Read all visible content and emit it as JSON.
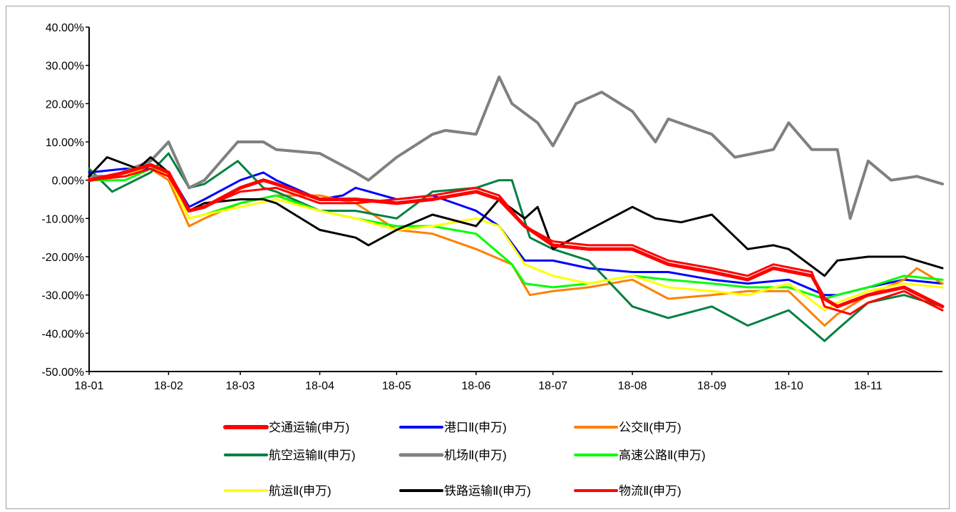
{
  "chart_data": {
    "type": "line",
    "title": "",
    "xlabel": "",
    "ylabel": "",
    "x_ticks": [
      "18-01",
      "18-02",
      "18-03",
      "18-04",
      "18-05",
      "18-06",
      "18-07",
      "18-08",
      "18-09",
      "18-10",
      "18-11"
    ],
    "y_ticks": [
      "40.00%",
      "30.00%",
      "20.00%",
      "10.00%",
      "0.00%",
      "-10.00%",
      "-20.00%",
      "-30.00%",
      "-40.00%",
      "-50.00%"
    ],
    "ylim": [
      -50,
      40
    ],
    "xlim": [
      "2018-01-01",
      "2018-11-30"
    ],
    "grid": false,
    "legend_position": "bottom",
    "series": [
      {
        "name": "交通运输(申万)",
        "color": "#ff0000",
        "width": 5,
        "x": [
          "2018-01-01",
          "2018-01-15",
          "2018-01-25",
          "2018-02-01",
          "2018-02-09",
          "2018-02-15",
          "2018-03-01",
          "2018-03-10",
          "2018-03-15",
          "2018-04-01",
          "2018-04-15",
          "2018-05-01",
          "2018-05-15",
          "2018-06-01",
          "2018-06-10",
          "2018-06-20",
          "2018-07-01",
          "2018-07-15",
          "2018-08-01",
          "2018-08-15",
          "2018-09-01",
          "2018-09-15",
          "2018-09-25",
          "2018-10-10",
          "2018-10-15",
          "2018-10-20",
          "2018-11-01",
          "2018-11-15",
          "2018-11-30"
        ],
        "y": [
          0,
          2,
          4,
          2,
          -8,
          -7,
          -2,
          0,
          -1,
          -5,
          -5,
          -6,
          -5,
          -3,
          -5,
          -12,
          -17,
          -18,
          -18,
          -22,
          -24,
          -26,
          -23,
          -25,
          -31,
          -33,
          -30,
          -28,
          -33
        ]
      },
      {
        "name": "港口Ⅱ(申万)",
        "color": "#0000ff",
        "width": 3,
        "x": [
          "2018-01-01",
          "2018-01-15",
          "2018-01-25",
          "2018-02-01",
          "2018-02-09",
          "2018-02-15",
          "2018-03-01",
          "2018-03-10",
          "2018-03-15",
          "2018-04-01",
          "2018-04-10",
          "2018-04-15",
          "2018-05-01",
          "2018-05-15",
          "2018-06-01",
          "2018-06-10",
          "2018-06-20",
          "2018-07-01",
          "2018-07-15",
          "2018-08-01",
          "2018-08-15",
          "2018-09-01",
          "2018-09-15",
          "2018-10-01",
          "2018-10-15",
          "2018-10-20",
          "2018-11-01",
          "2018-11-15",
          "2018-11-30"
        ],
        "y": [
          2,
          3,
          3,
          2,
          -7,
          -5,
          0,
          2,
          0,
          -5,
          -4,
          -2,
          -5,
          -4,
          -8,
          -12,
          -21,
          -21,
          -23,
          -24,
          -24,
          -26,
          -27,
          -26,
          -30,
          -30,
          -28,
          -26,
          -27
        ]
      },
      {
        "name": "公交Ⅱ(申万)",
        "color": "#ff8000",
        "width": 3,
        "x": [
          "2018-01-01",
          "2018-01-15",
          "2018-01-25",
          "2018-02-01",
          "2018-02-09",
          "2018-02-15",
          "2018-03-01",
          "2018-03-15",
          "2018-04-01",
          "2018-04-15",
          "2018-05-01",
          "2018-05-15",
          "2018-06-01",
          "2018-06-15",
          "2018-06-22",
          "2018-07-01",
          "2018-07-15",
          "2018-08-01",
          "2018-08-15",
          "2018-09-01",
          "2018-09-15",
          "2018-10-01",
          "2018-10-15",
          "2018-10-20",
          "2018-11-01",
          "2018-11-15",
          "2018-11-20",
          "2018-11-30"
        ],
        "y": [
          1,
          1,
          3,
          0,
          -12,
          -10,
          -6,
          -4,
          -4,
          -6,
          -13,
          -14,
          -18,
          -22,
          -30,
          -29,
          -28,
          -26,
          -31,
          -30,
          -29,
          -29,
          -38,
          -35,
          -30,
          -26,
          -23,
          -27
        ]
      },
      {
        "name": "航空运输Ⅱ(申万)",
        "color": "#008040",
        "width": 3,
        "x": [
          "2018-01-01",
          "2018-01-10",
          "2018-01-25",
          "2018-02-01",
          "2018-02-09",
          "2018-02-15",
          "2018-02-28",
          "2018-03-10",
          "2018-03-15",
          "2018-04-01",
          "2018-04-15",
          "2018-05-01",
          "2018-05-15",
          "2018-06-01",
          "2018-06-10",
          "2018-06-15",
          "2018-06-22",
          "2018-07-01",
          "2018-07-15",
          "2018-08-01",
          "2018-08-15",
          "2018-09-01",
          "2018-09-15",
          "2018-10-01",
          "2018-10-15",
          "2018-10-20",
          "2018-11-01",
          "2018-11-15",
          "2018-11-30"
        ],
        "y": [
          3,
          -3,
          2,
          7,
          -2,
          -1,
          5,
          -2,
          -3,
          -8,
          -8,
          -10,
          -3,
          -2,
          0,
          0,
          -15,
          -18,
          -21,
          -33,
          -36,
          -33,
          -38,
          -34,
          -42,
          -39,
          -32,
          -30,
          -33
        ]
      },
      {
        "name": "机场Ⅱ(申万)",
        "color": "#808080",
        "width": 4,
        "x": [
          "2018-01-01",
          "2018-01-10",
          "2018-01-25",
          "2018-02-01",
          "2018-02-09",
          "2018-02-15",
          "2018-02-28",
          "2018-03-10",
          "2018-03-15",
          "2018-04-01",
          "2018-04-15",
          "2018-04-20",
          "2018-05-01",
          "2018-05-15",
          "2018-05-20",
          "2018-06-01",
          "2018-06-10",
          "2018-06-15",
          "2018-06-25",
          "2018-07-01",
          "2018-07-10",
          "2018-07-20",
          "2018-08-01",
          "2018-08-10",
          "2018-08-15",
          "2018-09-01",
          "2018-09-10",
          "2018-09-25",
          "2018-10-01",
          "2018-10-10",
          "2018-10-20",
          "2018-10-25",
          "2018-11-01",
          "2018-11-10",
          "2018-11-20",
          "2018-11-30"
        ],
        "y": [
          1,
          1,
          5,
          10,
          -2,
          0,
          10,
          10,
          8,
          7,
          2,
          0,
          6,
          12,
          13,
          12,
          27,
          20,
          15,
          9,
          20,
          23,
          18,
          10,
          16,
          12,
          6,
          8,
          15,
          8,
          8,
          -10,
          5,
          0,
          1,
          -1
        ]
      },
      {
        "name": "高速公路Ⅱ(申万)",
        "color": "#00ff00",
        "width": 3,
        "x": [
          "2018-01-01",
          "2018-01-15",
          "2018-01-25",
          "2018-02-01",
          "2018-02-09",
          "2018-02-15",
          "2018-03-01",
          "2018-03-15",
          "2018-04-01",
          "2018-04-15",
          "2018-05-01",
          "2018-05-15",
          "2018-06-01",
          "2018-06-15",
          "2018-06-20",
          "2018-07-01",
          "2018-07-15",
          "2018-08-01",
          "2018-08-15",
          "2018-09-01",
          "2018-09-15",
          "2018-10-01",
          "2018-10-15",
          "2018-10-20",
          "2018-11-01",
          "2018-11-15",
          "2018-11-30"
        ],
        "y": [
          0,
          0,
          3,
          2,
          -10,
          -9,
          -6,
          -4,
          -8,
          -10,
          -12,
          -12,
          -14,
          -22,
          -27,
          -28,
          -27,
          -25,
          -26,
          -27,
          -28,
          -28,
          -31,
          -30,
          -28,
          -25,
          -26
        ]
      },
      {
        "name": "航运Ⅱ(申万)",
        "color": "#ffff00",
        "width": 3,
        "x": [
          "2018-01-01",
          "2018-01-15",
          "2018-01-25",
          "2018-02-01",
          "2018-02-09",
          "2018-02-15",
          "2018-03-01",
          "2018-03-15",
          "2018-04-01",
          "2018-04-15",
          "2018-05-01",
          "2018-05-15",
          "2018-06-01",
          "2018-06-10",
          "2018-06-20",
          "2018-07-01",
          "2018-07-15",
          "2018-08-01",
          "2018-08-15",
          "2018-09-01",
          "2018-09-15",
          "2018-10-01",
          "2018-10-15",
          "2018-10-20",
          "2018-11-01",
          "2018-11-15",
          "2018-11-30"
        ],
        "y": [
          0,
          1,
          4,
          1,
          -10,
          -9,
          -7,
          -5,
          -8,
          -10,
          -13,
          -12,
          -10,
          -12,
          -22,
          -25,
          -27,
          -25,
          -28,
          -29,
          -30,
          -27,
          -34,
          -32,
          -29,
          -27,
          -28
        ]
      },
      {
        "name": "铁路运输Ⅱ(申万)",
        "color": "#000000",
        "width": 3,
        "x": [
          "2018-01-01",
          "2018-01-08",
          "2018-01-20",
          "2018-01-25",
          "2018-02-01",
          "2018-02-09",
          "2018-02-15",
          "2018-03-01",
          "2018-03-10",
          "2018-03-15",
          "2018-04-01",
          "2018-04-15",
          "2018-04-20",
          "2018-05-01",
          "2018-05-15",
          "2018-06-01",
          "2018-06-10",
          "2018-06-20",
          "2018-06-25",
          "2018-07-01",
          "2018-07-15",
          "2018-08-01",
          "2018-08-10",
          "2018-08-20",
          "2018-09-01",
          "2018-09-15",
          "2018-09-25",
          "2018-10-01",
          "2018-10-15",
          "2018-10-20",
          "2018-11-01",
          "2018-11-15",
          "2018-11-30"
        ],
        "y": [
          1,
          6,
          3,
          6,
          2,
          -8,
          -6,
          -5,
          -5,
          -6,
          -13,
          -15,
          -17,
          -13,
          -9,
          -12,
          -5,
          -10,
          -7,
          -18,
          -13,
          -7,
          -10,
          -11,
          -9,
          -18,
          -17,
          -18,
          -25,
          -21,
          -20,
          -20,
          -23
        ]
      },
      {
        "name": "物流Ⅱ(申万)",
        "color": "#ff0000",
        "width": 3,
        "x": [
          "2018-01-01",
          "2018-01-15",
          "2018-01-25",
          "2018-02-01",
          "2018-02-09",
          "2018-02-15",
          "2018-03-01",
          "2018-03-15",
          "2018-04-01",
          "2018-04-15",
          "2018-05-01",
          "2018-05-15",
          "2018-06-01",
          "2018-06-10",
          "2018-06-20",
          "2018-07-01",
          "2018-07-15",
          "2018-08-01",
          "2018-08-15",
          "2018-09-01",
          "2018-09-15",
          "2018-09-25",
          "2018-10-10",
          "2018-10-15",
          "2018-10-25",
          "2018-11-01",
          "2018-11-15",
          "2018-11-30"
        ],
        "y": [
          0,
          1,
          3,
          1,
          -8,
          -7,
          -3,
          -2,
          -6,
          -6,
          -5,
          -4,
          -2,
          -4,
          -12,
          -16,
          -17,
          -17,
          -21,
          -23,
          -25,
          -22,
          -24,
          -33,
          -35,
          -32,
          -29,
          -34
        ]
      }
    ]
  }
}
